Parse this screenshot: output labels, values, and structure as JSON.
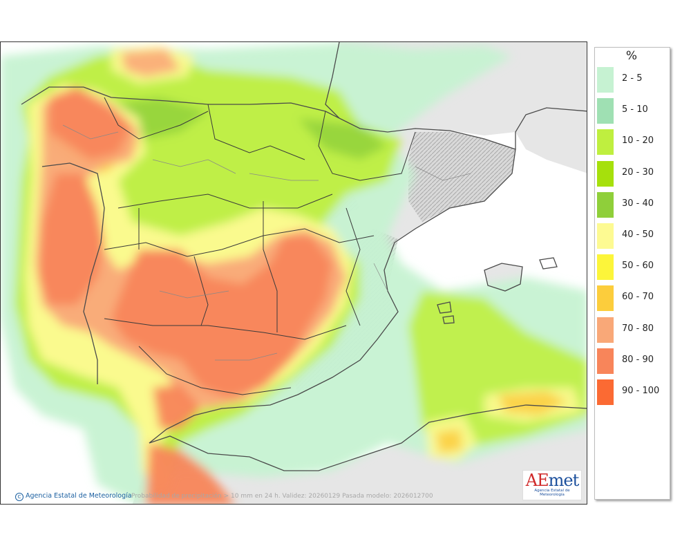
{
  "legend": {
    "unit": "%",
    "items": [
      {
        "label": "2 - 5",
        "color": "#c6f2d2"
      },
      {
        "label": "5 - 10",
        "color": "#9fe0b3"
      },
      {
        "label": "10 - 20",
        "color": "#bfef3f"
      },
      {
        "label": "20 - 30",
        "color": "#a6e00c"
      },
      {
        "label": "30 - 40",
        "color": "#8fcf3a"
      },
      {
        "label": "40 - 50",
        "color": "#fdfa92"
      },
      {
        "label": "50 - 60",
        "color": "#fcf53a"
      },
      {
        "label": "60 - 70",
        "color": "#fccd3c"
      },
      {
        "label": "70 - 80",
        "color": "#f9a878"
      },
      {
        "label": "80 - 90",
        "color": "#f8855a"
      },
      {
        "label": "90 - 100",
        "color": "#fb6a33"
      }
    ]
  },
  "map": {
    "credit": "Agencia Estatal de Meteorología",
    "caption": "Probabilidad de precipitación > 10 mm en 24 h. Validez: 20260129 Pasada modelo: 2026012700",
    "logo": {
      "mark_a": "A",
      "mark_e": "E",
      "mark_rest": "met",
      "subtitle": "Agencia Estatal de Meteorología"
    }
  }
}
